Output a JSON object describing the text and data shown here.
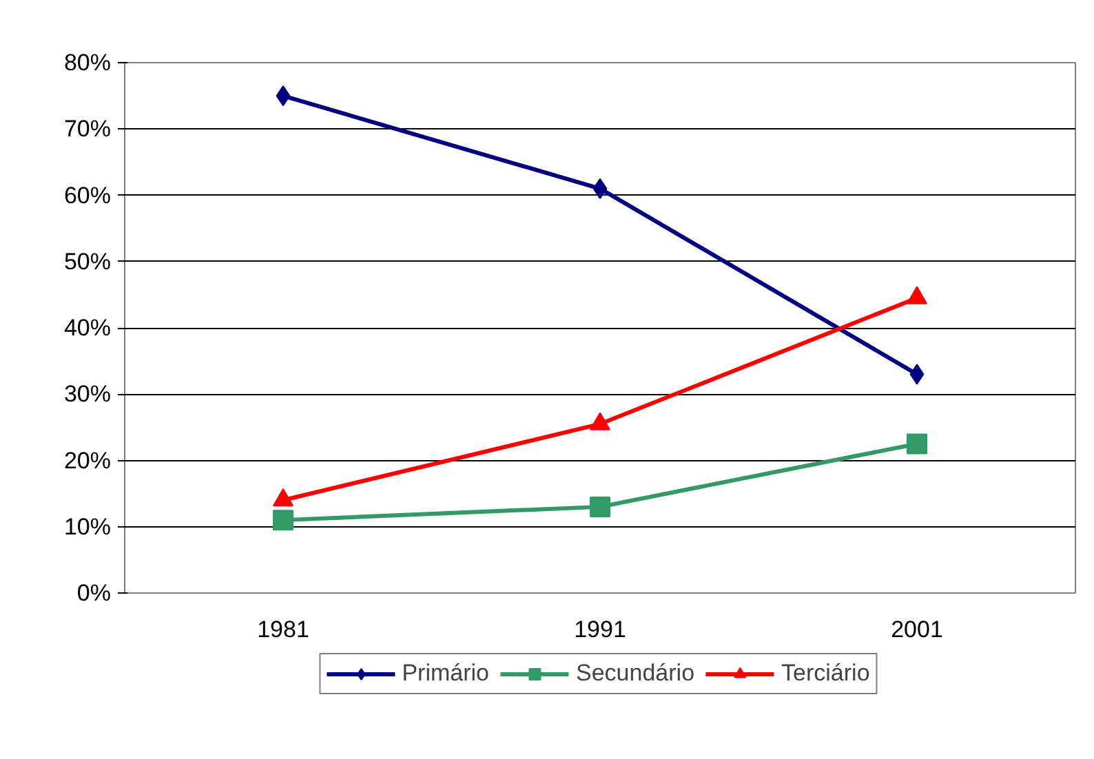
{
  "chart_data": {
    "type": "line",
    "categories": [
      "1981",
      "1991",
      "2001"
    ],
    "series": [
      {
        "name": "Primário",
        "color": "#000080",
        "marker": "diamond",
        "values": [
          75,
          61,
          33
        ]
      },
      {
        "name": "Secundário",
        "color": "#339966",
        "marker": "square",
        "values": [
          11,
          13,
          22.5
        ]
      },
      {
        "name": "Terciário",
        "color": "#ff0000",
        "marker": "triangle",
        "values": [
          14,
          25.5,
          44.5
        ]
      }
    ],
    "ylim": [
      0,
      80
    ],
    "yticks": [
      {
        "value": 0,
        "label": "0%"
      },
      {
        "value": 10,
        "label": "10%"
      },
      {
        "value": 20,
        "label": "20%"
      },
      {
        "value": 30,
        "label": "30%"
      },
      {
        "value": 40,
        "label": "40%"
      },
      {
        "value": 50,
        "label": "50%"
      },
      {
        "value": 60,
        "label": "60%"
      },
      {
        "value": 70,
        "label": "70%"
      },
      {
        "value": 80,
        "label": "80%"
      }
    ],
    "grid": "y",
    "legend": "bottom",
    "line_style": "solid"
  }
}
